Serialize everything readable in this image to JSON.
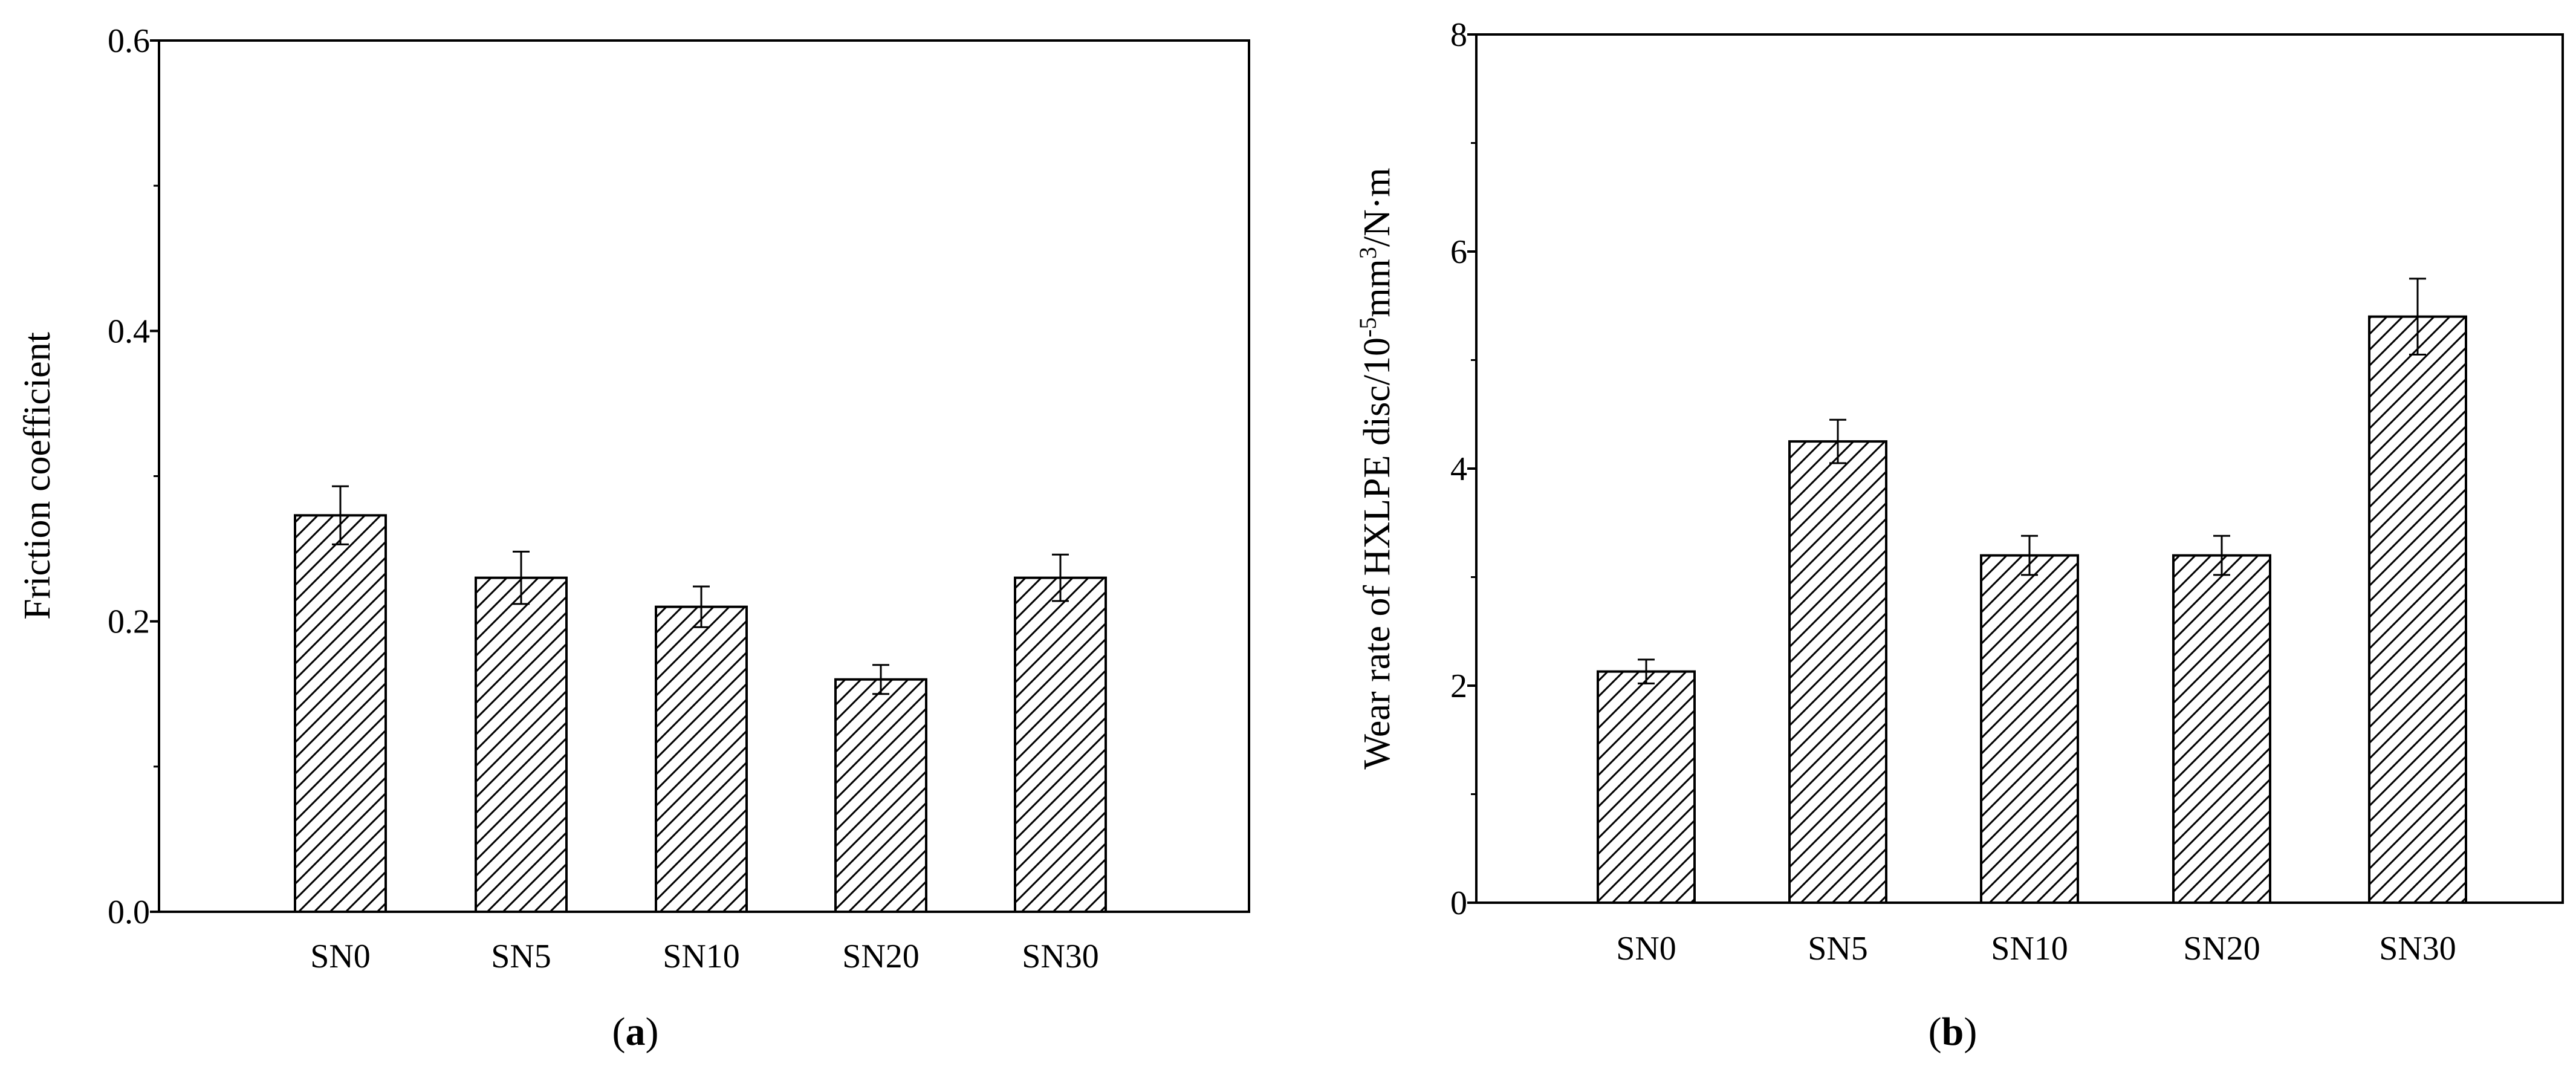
{
  "figure": {
    "panels": [
      {
        "label_open": "(",
        "label_letter": "a",
        "label_close": ")"
      },
      {
        "label_open": "(",
        "label_letter": "b",
        "label_close": ")"
      }
    ]
  },
  "chart_data": [
    {
      "type": "bar",
      "categories": [
        "SN0",
        "SN5",
        "SN10",
        "SN20",
        "SN30"
      ],
      "values": [
        0.273,
        0.23,
        0.21,
        0.16,
        0.23
      ],
      "errors": [
        0.02,
        0.018,
        0.014,
        0.01,
        0.016
      ],
      "ylabel": "Friction coefficient",
      "xlabel": "",
      "ylim": [
        0,
        0.6
      ],
      "yticks": [
        0.0,
        0.2,
        0.4,
        0.6
      ],
      "ytick_labels": [
        "0.0",
        "0.2",
        "0.4",
        "0.6"
      ],
      "bar_fill": "hatched",
      "grid": false
    },
    {
      "type": "bar",
      "categories": [
        "SN0",
        "SN5",
        "SN10",
        "SN20",
        "SN30"
      ],
      "values": [
        2.13,
        4.25,
        3.2,
        3.2,
        5.4
      ],
      "errors": [
        0.11,
        0.2,
        0.18,
        0.18,
        0.35
      ],
      "ylabel_parts": [
        "Wear rate of HXLPE disc/10",
        "-5",
        "mm",
        "3",
        "/N·m"
      ],
      "xlabel": "",
      "ylim": [
        0,
        8
      ],
      "yticks": [
        0,
        2,
        4,
        6,
        8
      ],
      "ytick_labels": [
        "0",
        "2",
        "4",
        "6",
        "8"
      ],
      "bar_fill": "hatched",
      "grid": false
    }
  ]
}
